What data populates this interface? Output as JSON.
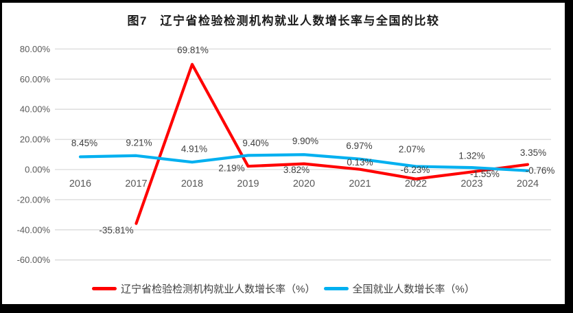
{
  "title": "图7　辽宁省检验检测机构就业人数增长率与全国的比较",
  "chart_data": {
    "type": "line",
    "title": "图7 辽宁省检验检测机构就业人数增长率与全国的比较",
    "categories": [
      "2016",
      "2017",
      "2018",
      "2019",
      "2020",
      "2021",
      "2022",
      "2023",
      "2024"
    ],
    "series": [
      {
        "name": "辽宁省检验检测机构就业人数增长率（%）",
        "color": "#FF0000",
        "values": [
          null,
          -35.81,
          69.81,
          2.19,
          3.82,
          0.13,
          -6.23,
          -1.55,
          3.35
        ],
        "labels": [
          null,
          "-35.81%",
          "69.81%",
          "2.19%",
          "3.82%",
          "0.13%",
          "-6.23%",
          "-1.55%",
          "3.35%"
        ],
        "label_offsets": [
          [
            0,
            0
          ],
          [
            -29,
            10
          ],
          [
            1,
            -21
          ],
          [
            -24,
            3
          ],
          [
            -11,
            9
          ],
          [
            0,
            -10
          ],
          [
            -1,
            -13
          ],
          [
            19,
            3
          ],
          [
            8,
            -17
          ]
        ]
      },
      {
        "name": "全国就业人数增长率（%）",
        "color": "#00B0F0",
        "values": [
          8.45,
          9.21,
          4.91,
          9.4,
          9.9,
          6.97,
          2.07,
          1.32,
          -0.76
        ],
        "labels": [
          "8.45%",
          "9.21%",
          "4.91%",
          "9.40%",
          "9.90%",
          "6.97%",
          "2.07%",
          "1.32%",
          "-0.76%"
        ],
        "label_offsets": [
          [
            6,
            -20
          ],
          [
            4,
            -19
          ],
          [
            3,
            -19
          ],
          [
            11,
            -18
          ],
          [
            2,
            -20
          ],
          [
            -1,
            -19
          ],
          [
            -6,
            -25
          ],
          [
            0,
            -17
          ],
          [
            18,
            0
          ]
        ]
      }
    ],
    "xlabel": "",
    "ylabel": "",
    "ylim": [
      -60,
      80
    ],
    "yticks": [
      80,
      60,
      40,
      20,
      0,
      -20,
      -40,
      -60
    ],
    "ytick_labels": [
      "80.00%",
      "60.00%",
      "40.00%",
      "20.00%",
      "0.00%",
      "-20.00%",
      "-40.00%",
      "-60.00%"
    ],
    "grid": true,
    "legend_position": "bottom",
    "data_labels_shown": true
  },
  "colors": {
    "frame": "#000000",
    "plot_background": "#ffffff",
    "gridline": "#D9D9D9",
    "tick_text": "#595959",
    "data_label_text": "#404040",
    "title_text": "#1a1a1a",
    "series_red": "#FF0000",
    "series_blue": "#00B0F0"
  }
}
